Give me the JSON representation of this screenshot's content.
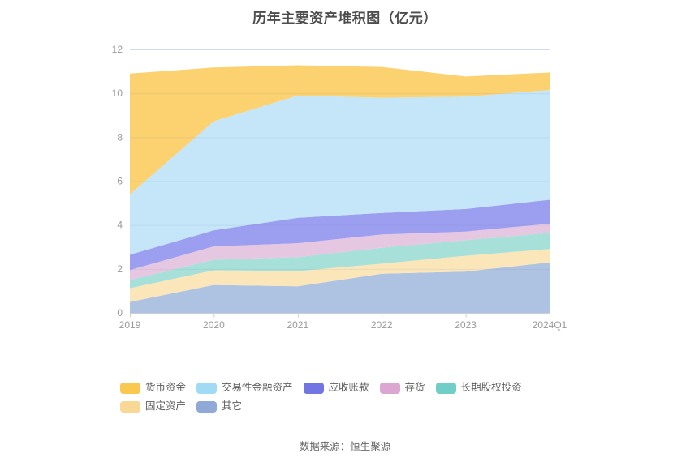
{
  "title": "历年主要资产堆积图（亿元）",
  "footer": "数据来源：恒生聚源",
  "chart_data": {
    "type": "area",
    "stacked": true,
    "title": "历年主要资产堆积图（亿元）",
    "categories": [
      "2019",
      "2020",
      "2021",
      "2022",
      "2023",
      "2024Q1"
    ],
    "series": [
      {
        "name": "货币资金",
        "color": "#FAC74F",
        "fill": "#FCD170",
        "values": [
          5.5,
          2.45,
          1.38,
          1.4,
          0.92,
          0.8
        ]
      },
      {
        "name": "交易性金融资产",
        "color": "#A0DAF4",
        "fill": "#C4E6F8",
        "values": [
          2.75,
          4.97,
          5.57,
          5.25,
          5.12,
          5.0
        ]
      },
      {
        "name": "应收账款",
        "color": "#7176E2",
        "fill": "#9C9EEF",
        "values": [
          0.7,
          0.73,
          1.16,
          0.98,
          1.03,
          1.09
        ]
      },
      {
        "name": "存货",
        "color": "#DCA6D3",
        "fill": "#E6C7E1",
        "values": [
          0.45,
          0.61,
          0.63,
          0.6,
          0.39,
          0.42
        ]
      },
      {
        "name": "长期股权投资",
        "color": "#6FCEC6",
        "fill": "#A6E0D9",
        "values": [
          0.38,
          0.48,
          0.64,
          0.73,
          0.71,
          0.73
        ]
      },
      {
        "name": "固定资产",
        "color": "#F9D795",
        "fill": "#FBE6BA",
        "values": [
          0.62,
          0.67,
          0.69,
          0.46,
          0.72,
          0.61
        ]
      },
      {
        "name": "其它",
        "color": "#90A9D6",
        "fill": "#AEC2E2",
        "values": [
          0.5,
          1.27,
          1.21,
          1.78,
          1.88,
          2.3
        ]
      }
    ],
    "stack_order": "bottom-to-top is reverse of series list (其它 at bottom, 货币资金 on top)",
    "xlabel": "",
    "ylabel": "",
    "ylim": [
      0,
      12
    ],
    "yticks": [
      0,
      2,
      4,
      6,
      8,
      10,
      12
    ],
    "grid": true,
    "legend_position": "bottom-left",
    "axis_label_color": "#999999",
    "gridline_color": "#E2E8F2"
  }
}
